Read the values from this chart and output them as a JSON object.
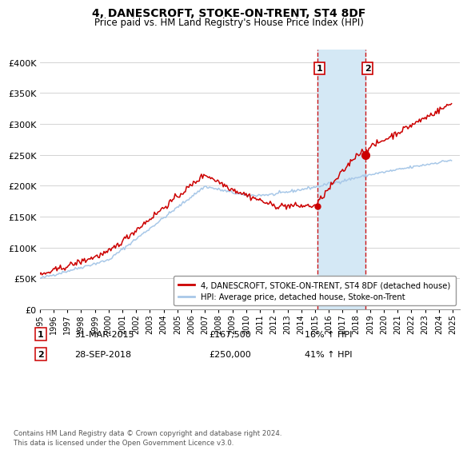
{
  "title": "4, DANESCROFT, STOKE-ON-TRENT, ST4 8DF",
  "subtitle": "Price paid vs. HM Land Registry's House Price Index (HPI)",
  "ylim": [
    0,
    420000
  ],
  "yticks": [
    0,
    50000,
    100000,
    150000,
    200000,
    250000,
    300000,
    350000,
    400000
  ],
  "ytick_labels": [
    "£0",
    "£50K",
    "£100K",
    "£150K",
    "£200K",
    "£250K",
    "£300K",
    "£350K",
    "£400K"
  ],
  "hpi_color": "#a8c8e8",
  "price_color": "#cc0000",
  "shade_color": "#d4e8f5",
  "dashed_line_color": "#cc0000",
  "transaction1_date": "31-MAR-2015",
  "transaction1_price": "£167,500",
  "transaction1_hpi_pct": "16% ↑ HPI",
  "transaction2_date": "28-SEP-2018",
  "transaction2_price": "£250,000",
  "transaction2_hpi_pct": "41% ↑ HPI",
  "legend_label1": "4, DANESCROFT, STOKE-ON-TRENT, ST4 8DF (detached house)",
  "legend_label2": "HPI: Average price, detached house, Stoke-on-Trent",
  "footnote": "Contains HM Land Registry data © Crown copyright and database right 2024.\nThis data is licensed under the Open Government Licence v3.0.",
  "x_start_year": 1995,
  "x_end_year": 2025
}
